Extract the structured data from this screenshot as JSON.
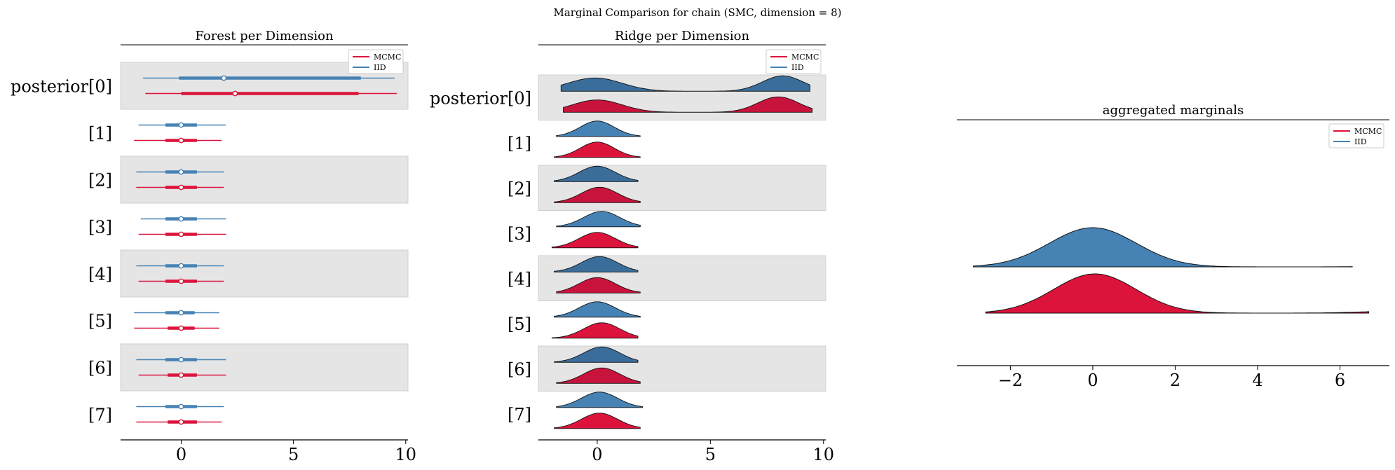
{
  "figure": {
    "suptitle": "Marginal Comparison for chain (SMC, dimension = 8)"
  },
  "colors": {
    "mcmc": "#dc143c",
    "iid": "#4682b4",
    "band": "#e5e5e5",
    "ridge_dark_mcmc": "#c8143c",
    "ridge_dark_iid": "#3a6d9a"
  },
  "legend": {
    "mcmc": "MCMC",
    "iid": "IID"
  },
  "chart_data": [
    {
      "type": "forest",
      "title": "Forest per Dimension",
      "row_labels": [
        "posterior[0]",
        "[1]",
        "[2]",
        "[3]",
        "[4]",
        "[5]",
        "[6]",
        "[7]"
      ],
      "xlim": [
        -2.7,
        10.1
      ],
      "xticks": [
        0,
        5,
        10
      ],
      "legend_placement": "top-right",
      "series": [
        {
          "name": "IID",
          "color": "#4682b4",
          "rows": [
            {
              "low": -1.7,
              "q25": -0.1,
              "median": 1.9,
              "q75": 8.0,
              "high": 9.5
            },
            {
              "low": -1.9,
              "q25": -0.7,
              "median": 0.0,
              "q75": 0.7,
              "high": 2.0
            },
            {
              "low": -2.0,
              "q25": -0.7,
              "median": 0.0,
              "q75": 0.7,
              "high": 1.9
            },
            {
              "low": -1.8,
              "q25": -0.7,
              "median": 0.0,
              "q75": 0.7,
              "high": 2.0
            },
            {
              "low": -2.0,
              "q25": -0.7,
              "median": 0.0,
              "q75": 0.7,
              "high": 1.9
            },
            {
              "low": -2.1,
              "q25": -0.7,
              "median": 0.0,
              "q75": 0.6,
              "high": 1.7
            },
            {
              "low": -2.0,
              "q25": -0.7,
              "median": 0.0,
              "q75": 0.7,
              "high": 2.0
            },
            {
              "low": -2.0,
              "q25": -0.7,
              "median": 0.0,
              "q75": 0.7,
              "high": 1.9
            }
          ]
        },
        {
          "name": "MCMC",
          "color": "#dc143c",
          "rows": [
            {
              "low": -1.6,
              "q25": 0.0,
              "median": 2.4,
              "q75": 7.9,
              "high": 9.6
            },
            {
              "low": -2.1,
              "q25": -0.7,
              "median": 0.0,
              "q75": 0.7,
              "high": 1.8
            },
            {
              "low": -2.0,
              "q25": -0.7,
              "median": 0.0,
              "q75": 0.7,
              "high": 1.9
            },
            {
              "low": -1.9,
              "q25": -0.7,
              "median": 0.0,
              "q75": 0.7,
              "high": 2.0
            },
            {
              "low": -1.9,
              "q25": -0.7,
              "median": 0.0,
              "q75": 0.7,
              "high": 1.9
            },
            {
              "low": -2.1,
              "q25": -0.6,
              "median": 0.0,
              "q75": 0.6,
              "high": 1.7
            },
            {
              "low": -1.9,
              "q25": -0.6,
              "median": 0.0,
              "q75": 0.7,
              "high": 2.0
            },
            {
              "low": -2.0,
              "q25": -0.6,
              "median": 0.0,
              "q75": 0.7,
              "high": 1.8
            }
          ]
        }
      ]
    },
    {
      "type": "ridge",
      "title": "Ridge per Dimension",
      "row_labels": [
        "posterior[0]",
        "[1]",
        "[2]",
        "[3]",
        "[4]",
        "[5]",
        "[6]",
        "[7]"
      ],
      "xlim": [
        -2.6,
        10.1
      ],
      "xticks": [
        0,
        5,
        10
      ],
      "legend_placement": "top-right",
      "series": [
        {
          "name": "IID",
          "color": "#4682b4",
          "rows": [
            {
              "start": -1.6,
              "end": 9.4,
              "peaks": [
                [
                  -0.1,
                  1.2,
                  0.82
                ],
                [
                  8.2,
                  0.9,
                  0.95
                ]
              ]
            },
            {
              "start": -1.8,
              "end": 1.9,
              "peaks": [
                [
                  0.0,
                  0.75,
                  1.0
                ]
              ]
            },
            {
              "start": -1.9,
              "end": 1.8,
              "peaks": [
                [
                  0.0,
                  0.8,
                  1.0
                ]
              ]
            },
            {
              "start": -1.8,
              "end": 1.9,
              "peaks": [
                [
                  0.2,
                  0.8,
                  1.0
                ]
              ]
            },
            {
              "start": -1.9,
              "end": 1.8,
              "peaks": [
                [
                  0.1,
                  0.8,
                  1.0
                ]
              ]
            },
            {
              "start": -1.9,
              "end": 1.9,
              "peaks": [
                [
                  0.0,
                  0.8,
                  1.0
                ]
              ]
            },
            {
              "start": -1.9,
              "end": 1.8,
              "peaks": [
                [
                  0.2,
                  0.8,
                  1.0
                ]
              ]
            },
            {
              "start": -1.8,
              "end": 2.0,
              "peaks": [
                [
                  0.1,
                  0.8,
                  1.0
                ]
              ]
            }
          ]
        },
        {
          "name": "MCMC",
          "color": "#dc143c",
          "rows": [
            {
              "start": -1.5,
              "end": 9.5,
              "peaks": [
                [
                  0.0,
                  1.1,
                  0.8
                ],
                [
                  8.0,
                  0.9,
                  1.0
                ]
              ]
            },
            {
              "start": -1.9,
              "end": 1.9,
              "peaks": [
                [
                  0.0,
                  0.75,
                  1.0
                ]
              ]
            },
            {
              "start": -1.9,
              "end": 1.9,
              "peaks": [
                [
                  0.1,
                  0.8,
                  1.0
                ]
              ]
            },
            {
              "start": -2.0,
              "end": 1.8,
              "peaks": [
                [
                  0.0,
                  0.8,
                  1.0
                ]
              ]
            },
            {
              "start": -1.8,
              "end": 1.9,
              "peaks": [
                [
                  0.0,
                  0.8,
                  1.0
                ]
              ]
            },
            {
              "start": -2.0,
              "end": 1.8,
              "peaks": [
                [
                  0.2,
                  0.8,
                  1.0
                ]
              ]
            },
            {
              "start": -1.8,
              "end": 1.9,
              "peaks": [
                [
                  0.2,
                  0.8,
                  1.0
                ]
              ]
            },
            {
              "start": -1.9,
              "end": 1.9,
              "peaks": [
                [
                  0.1,
                  0.8,
                  1.0
                ]
              ]
            }
          ]
        }
      ]
    },
    {
      "type": "ridge",
      "title": "aggregated marginals",
      "xlim": [
        -3.3,
        7.2
      ],
      "xticks": [
        -2,
        0,
        2,
        4,
        6
      ],
      "legend_placement": "top-right",
      "series": [
        {
          "name": "IID",
          "color": "#4682b4",
          "start": -2.9,
          "end": 6.3,
          "peaks": [
            [
              0.0,
              1.05,
              1.0
            ],
            [
              7.8,
              0.8,
              0.04
            ]
          ]
        },
        {
          "name": "MCMC",
          "color": "#dc143c",
          "start": -2.6,
          "end": 6.7,
          "peaks": [
            [
              0.05,
              1.0,
              1.0
            ],
            [
              7.4,
              0.9,
              0.05
            ]
          ]
        }
      ]
    }
  ]
}
